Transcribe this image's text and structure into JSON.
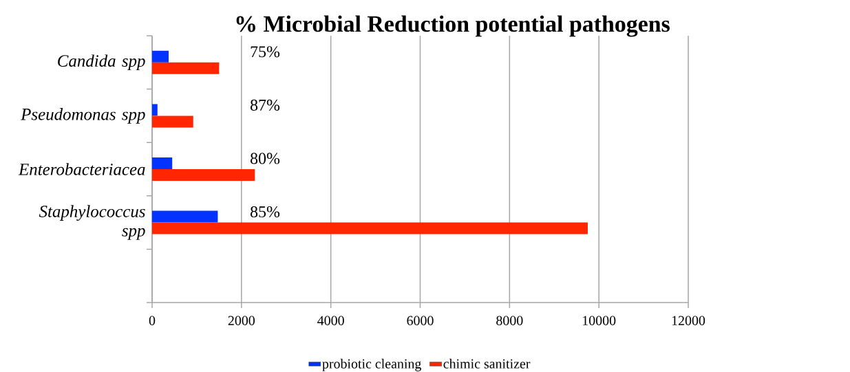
{
  "chart_data": {
    "type": "bar",
    "orientation": "horizontal",
    "title": "% Microbial Reduction potential pathogens",
    "categories": [
      "Candida spp",
      "Pseudomonas spp",
      "Enterobacteriacea",
      "Staphylococcus spp",
      null
    ],
    "series": [
      {
        "name": "probiotic cleaning",
        "color": "#0433ff",
        "values": [
          370,
          120,
          450,
          1470,
          null
        ]
      },
      {
        "name": "chimic sanitizer",
        "color": "#ff2600",
        "values": [
          1500,
          920,
          2300,
          9750,
          null
        ]
      }
    ],
    "xlim": [
      0,
      12000
    ],
    "xticks": [
      0,
      2000,
      4000,
      6000,
      8000,
      10000,
      12000
    ],
    "grid": "x",
    "legend": "bottom",
    "annotations": [
      "75%",
      "87%",
      "80%",
      "85%"
    ]
  }
}
